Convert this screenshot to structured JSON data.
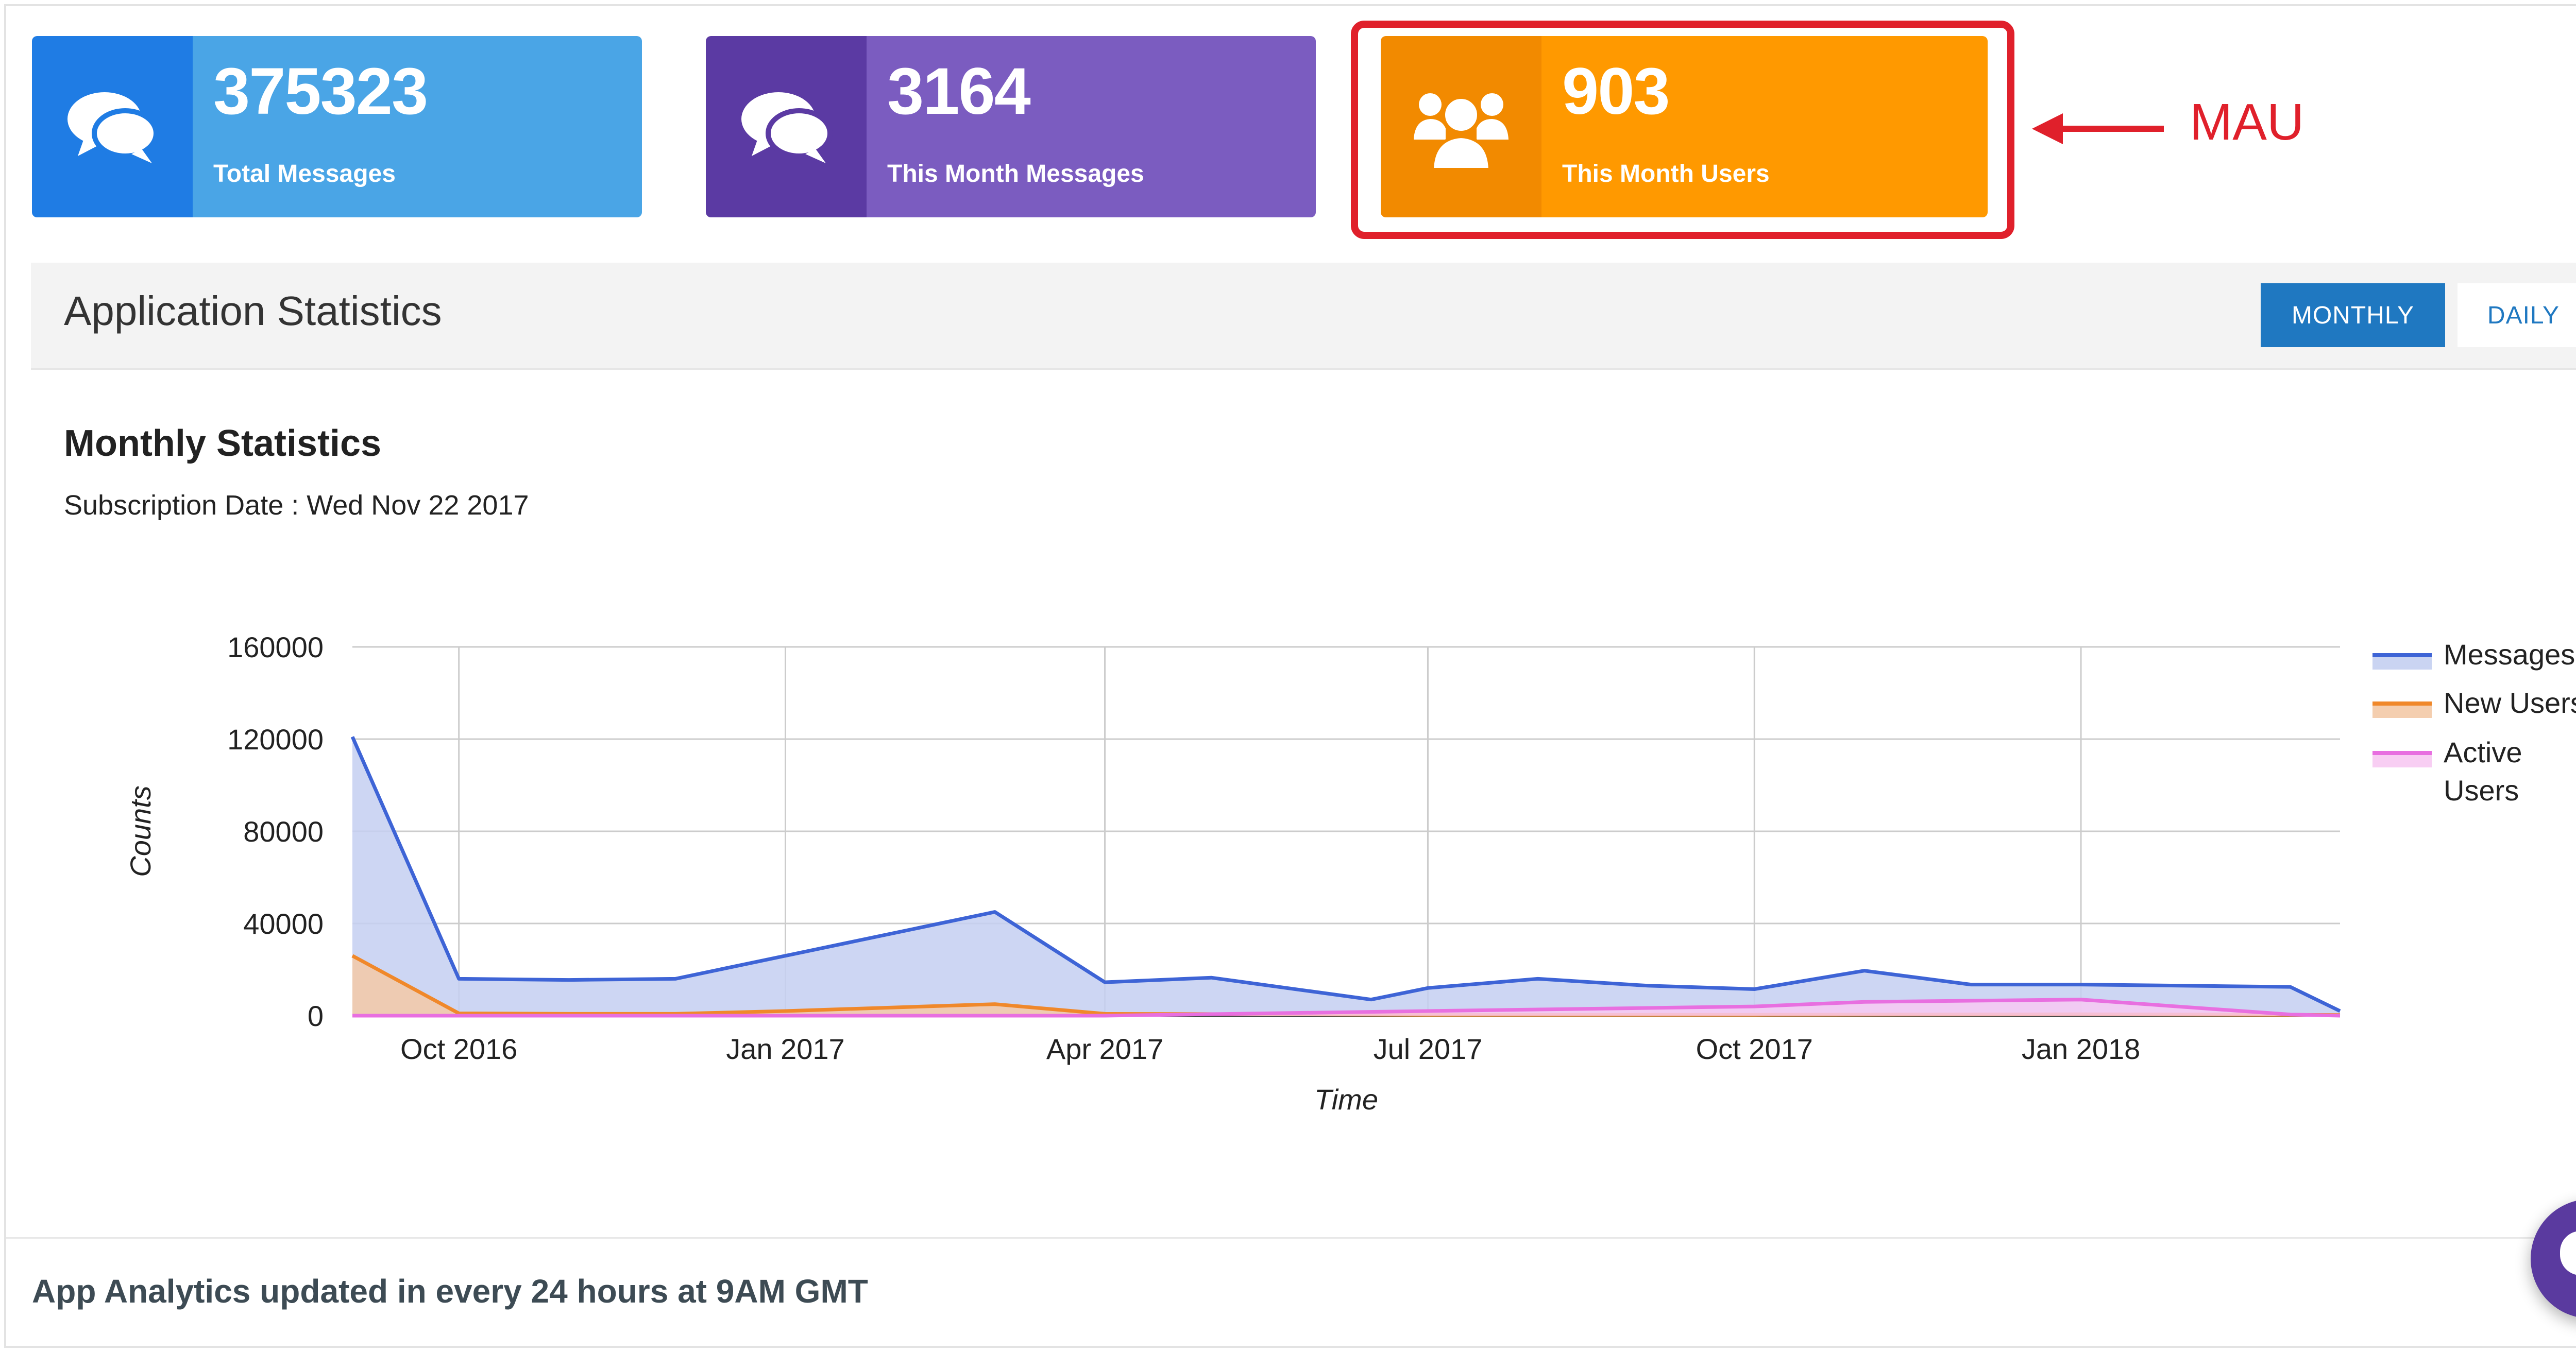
{
  "cards": [
    {
      "value": "375323",
      "label": "Total Messages",
      "icon": "chat-bubbles-icon",
      "icon_bg": "#1f7ce4",
      "body_bg": "#4aa5e6"
    },
    {
      "value": "3164",
      "label": "This Month Messages",
      "icon": "chat-bubbles-icon",
      "icon_bg": "#5b3aa3",
      "body_bg": "#7b5cc0"
    },
    {
      "value": "903",
      "label": "This Month Users",
      "icon": "users-group-icon",
      "icon_bg": "#f28a00",
      "body_bg": "#ff9900"
    }
  ],
  "annotation": {
    "label": "MAU",
    "color": "#e0202b"
  },
  "stats_header": {
    "title": "Application Statistics",
    "monthly_label": "MONTHLY",
    "daily_label": "DAILY",
    "selected": "MONTHLY"
  },
  "chart_heading": {
    "title": "Monthly Statistics",
    "subtitle": "Subscription Date : Wed Nov 22 2017"
  },
  "chart_data": {
    "type": "area",
    "xlabel": "Time",
    "ylabel": "Counts",
    "x_ticks": [
      "Oct 2016",
      "Jan 2017",
      "Apr 2017",
      "Jul 2017",
      "Oct 2017",
      "Jan 2018"
    ],
    "y_ticks": [
      "0",
      "40000",
      "80000",
      "120000",
      "160000"
    ],
    "ylim": [
      0,
      160000
    ],
    "xlim": [
      "2016-09-01",
      "2018-03-15"
    ],
    "legend_position": "right",
    "series": [
      {
        "name": "Messages",
        "color": "#3e64d6",
        "fill": "#c4cff1",
        "points": [
          [
            "2016-09-01",
            121000
          ],
          [
            "2016-10-01",
            16000
          ],
          [
            "2016-11-01",
            15500
          ],
          [
            "2016-12-01",
            16000
          ],
          [
            "2017-03-01",
            45000
          ],
          [
            "2017-04-01",
            14500
          ],
          [
            "2017-05-01",
            16500
          ],
          [
            "2017-06-15",
            7000
          ],
          [
            "2017-07-01",
            12000
          ],
          [
            "2017-08-01",
            16000
          ],
          [
            "2017-09-01",
            13000
          ],
          [
            "2017-10-01",
            11500
          ],
          [
            "2017-11-01",
            19500
          ],
          [
            "2017-12-01",
            13500
          ],
          [
            "2018-01-01",
            13500
          ],
          [
            "2018-03-01",
            12500
          ],
          [
            "2018-03-15",
            2000
          ]
        ]
      },
      {
        "name": "New Users",
        "color": "#f0882a",
        "fill": "#f3c9a6",
        "points": [
          [
            "2016-09-01",
            26000
          ],
          [
            "2016-10-01",
            1000
          ],
          [
            "2016-11-01",
            800
          ],
          [
            "2016-12-01",
            800
          ],
          [
            "2017-01-01",
            2000
          ],
          [
            "2017-03-01",
            5000
          ],
          [
            "2017-04-01",
            800
          ],
          [
            "2017-07-01",
            400
          ],
          [
            "2017-10-01",
            400
          ],
          [
            "2018-01-01",
            600
          ],
          [
            "2018-03-01",
            400
          ],
          [
            "2018-03-15",
            300
          ]
        ]
      },
      {
        "name": "Active Users",
        "color": "#e86fe0",
        "fill": "#f7c9f2",
        "points": [
          [
            "2016-09-01",
            0
          ],
          [
            "2017-04-01",
            0
          ],
          [
            "2017-07-01",
            2000
          ],
          [
            "2017-10-01",
            4000
          ],
          [
            "2017-11-01",
            6000
          ],
          [
            "2018-01-01",
            7000
          ],
          [
            "2018-03-01",
            500
          ],
          [
            "2018-03-15",
            0
          ]
        ]
      }
    ]
  },
  "footer": {
    "text": "App Analytics updated in every 24 hours at 9AM GMT"
  },
  "chat_widget": {
    "icon": "chat-bubble-icon"
  }
}
